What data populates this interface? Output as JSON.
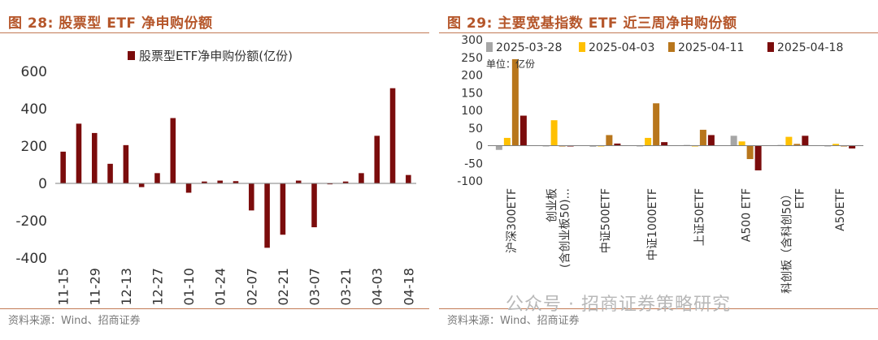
{
  "left": {
    "figure_title": "图 28: 股票型 ETF 净申购份额",
    "source": "资料来源：Wind、招商证券",
    "chart_data": {
      "type": "bar",
      "title": "",
      "legend": [
        "股票型ETF净申购份额(亿份)"
      ],
      "legend_position": "top",
      "xlabel": "",
      "ylabel": "",
      "ylim": [
        -400,
        600
      ],
      "yticks": [
        -400,
        -200,
        0,
        200,
        400,
        600
      ],
      "grid": false,
      "color": "#7b0c0c",
      "xtick_labels": [
        "11-15",
        "11-29",
        "12-13",
        "12-27",
        "01-10",
        "01-24",
        "02-07",
        "02-21",
        "03-07",
        "03-21",
        "04-03",
        "04-18"
      ],
      "series": [
        {
          "name": "股票型ETF净申购份额(亿份)",
          "values": [
            170,
            320,
            270,
            105,
            205,
            -20,
            55,
            350,
            -50,
            10,
            15,
            12,
            -145,
            -345,
            -275,
            15,
            -235,
            -5,
            10,
            55,
            255,
            510,
            45
          ]
        }
      ]
    }
  },
  "right": {
    "figure_title": "图 29: 主要宽基指数 ETF 近三周净申购份额",
    "source": "资料来源：Wind、招商证券",
    "unit_label": "单位：亿份",
    "watermark": "公众号 · 招商证券策略研究",
    "chart_data": {
      "type": "bar",
      "title": "",
      "xlabel": "",
      "ylabel": "",
      "ylim": [
        -100,
        300
      ],
      "yticks": [
        -100,
        -50,
        0,
        50,
        100,
        150,
        200,
        250,
        300
      ],
      "grid": false,
      "legend_position": "top",
      "categories": [
        [
          "沪深300ETF"
        ],
        [
          "创业板",
          "(含创业板50)..."
        ],
        [
          "中证500ETF"
        ],
        [
          "中证1000ETF"
        ],
        [
          "上证50ETF"
        ],
        [
          "A500 ETF"
        ],
        [
          "科创板（含科创50）",
          "ETF"
        ],
        [
          "A50ETF"
        ]
      ],
      "series": [
        {
          "name": "2025-03-28",
          "color": "#a6a6a6",
          "values": [
            -12,
            0,
            -3,
            -2,
            2,
            28,
            2,
            0
          ]
        },
        {
          "name": "2025-04-03",
          "color": "#ffc000",
          "values": [
            22,
            72,
            0,
            22,
            0,
            12,
            25,
            5
          ]
        },
        {
          "name": "2025-04-11",
          "color": "#b8761c",
          "values": [
            245,
            0,
            30,
            120,
            45,
            -38,
            5,
            0
          ]
        },
        {
          "name": "2025-04-18",
          "color": "#7b0c0c",
          "values": [
            85,
            0,
            6,
            10,
            30,
            -70,
            28,
            -8
          ]
        }
      ]
    }
  }
}
